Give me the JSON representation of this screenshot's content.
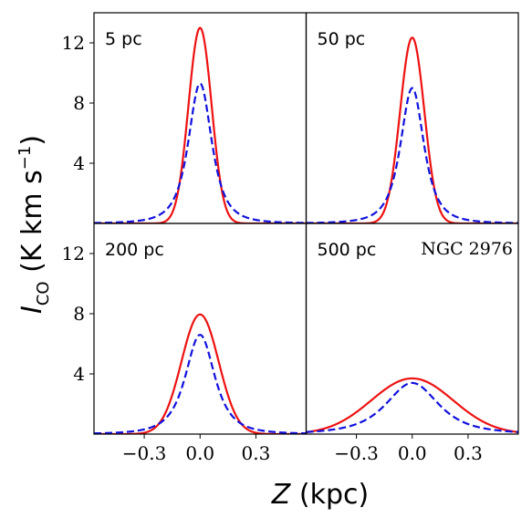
{
  "chart_data": {
    "type": "line",
    "layout": "2x2 grid, shared axes",
    "xlabel": "Z (kpc)",
    "ylabel": "I_CO (K km s^-1)",
    "xlim": [
      -0.57,
      0.57
    ],
    "ylim": [
      0,
      14
    ],
    "xticks": [
      -0.3,
      0.0,
      0.3
    ],
    "xtick_labels": [
      "−0.3",
      "0.0",
      "0.3"
    ],
    "yticks": [
      4,
      8,
      12
    ],
    "ytick_labels": [
      "4",
      "8",
      "12"
    ],
    "grid": false,
    "annotation": "NGC 2976",
    "series_styles": [
      {
        "color": "#ee1111",
        "dash": "solid"
      },
      {
        "color": "#1111dd",
        "dash": "dashed"
      }
    ],
    "panels": [
      {
        "label": "5 pc",
        "series": [
          {
            "shape": "gaussian",
            "center": 0.0,
            "peak": 13.0,
            "sigma": 0.062
          },
          {
            "shape": "lorentzian-like",
            "center": 0.0,
            "peak": 9.3,
            "width": 0.12
          }
        ]
      },
      {
        "label": "50 pc",
        "series": [
          {
            "shape": "gaussian",
            "center": 0.0,
            "peak": 12.35,
            "sigma": 0.065
          },
          {
            "shape": "lorentzian-like",
            "center": 0.0,
            "peak": 9.0,
            "width": 0.12
          }
        ]
      },
      {
        "label": "200 pc",
        "series": [
          {
            "shape": "gaussian",
            "center": 0.0,
            "peak": 7.95,
            "sigma": 0.1
          },
          {
            "shape": "lorentzian-like",
            "center": 0.0,
            "peak": 6.6,
            "width": 0.15
          }
        ]
      },
      {
        "label": "500 pc",
        "series": [
          {
            "shape": "gaussian",
            "center": 0.0,
            "peak": 3.7,
            "sigma": 0.22
          },
          {
            "shape": "lorentzian-like",
            "center": 0.0,
            "peak": 3.4,
            "width": 0.27
          }
        ]
      }
    ]
  }
}
